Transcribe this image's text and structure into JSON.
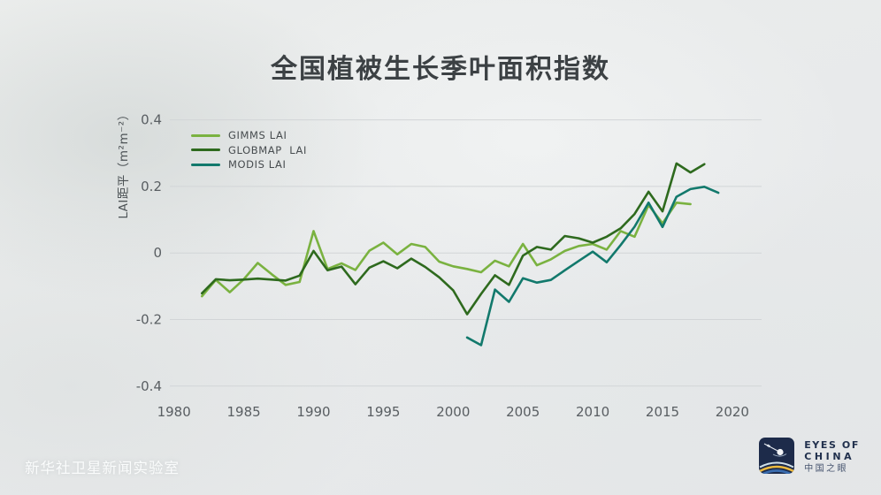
{
  "title": "全国植被生长季叶面积指数",
  "footer": {
    "watermark": "新华社卫星新闻实验室"
  },
  "logo": {
    "line1": "EYES OF",
    "line2": "CHINA",
    "line3": "中国之眼"
  },
  "colors": {
    "background": "#e9ebec",
    "grid": "#d2d5d7",
    "title_text": "#3c4144",
    "axis_text": "#595e62",
    "watermark_text": "#fcfdfd",
    "logo_navy": "#1d2b4a",
    "logo_arc_light": "#cfe0ea",
    "logo_arc_yellow": "#eeba3d",
    "logo_arc_blue": "#3a6db0"
  },
  "chart_data": {
    "type": "line",
    "title": "全国植被生长季叶面积指数",
    "xlabel": "",
    "ylabel": "LAI距平（m²m⁻²）",
    "ylim": [
      -0.4,
      0.4
    ],
    "xlim": [
      1980,
      2022
    ],
    "grid": "horizontal-only",
    "legend_position": "top-left-inside",
    "yticks": [
      {
        "v": 0.4,
        "label": "0.4"
      },
      {
        "v": 0.2,
        "label": "0.2"
      },
      {
        "v": 0,
        "label": "0"
      },
      {
        "v": -0.2,
        "label": "-0.2"
      },
      {
        "v": -0.4,
        "label": "-0.4"
      }
    ],
    "xticks": [
      "1980",
      "1985",
      "1990",
      "1995",
      "2000",
      "2005",
      "2010",
      "2015",
      "2020"
    ],
    "series": [
      {
        "name": "GIMMS LAI",
        "slug": "gimms",
        "color": "#7ab240",
        "x_start": 1982,
        "x_step": 1,
        "values": [
          -0.13,
          -0.081,
          -0.118,
          -0.079,
          -0.03,
          -0.064,
          -0.096,
          -0.087,
          0.066,
          -0.048,
          -0.031,
          -0.051,
          0.007,
          0.031,
          -0.004,
          0.027,
          0.018,
          -0.026,
          -0.04,
          -0.048,
          -0.058,
          -0.023,
          -0.04,
          0.027,
          -0.037,
          -0.019,
          0.006,
          0.021,
          0.027,
          0.01,
          0.066,
          0.049,
          0.144,
          0.089,
          0.151,
          0.147
        ]
      },
      {
        "name": "GLOBMAP  LAI",
        "slug": "globmap",
        "color": "#2e6a1e",
        "x_start": 1982,
        "x_step": 1,
        "values": [
          -0.121,
          -0.079,
          -0.082,
          -0.08,
          -0.077,
          -0.08,
          -0.083,
          -0.068,
          0.006,
          -0.052,
          -0.041,
          -0.094,
          -0.044,
          -0.025,
          -0.046,
          -0.017,
          -0.042,
          -0.073,
          -0.112,
          -0.184,
          -0.123,
          -0.067,
          -0.096,
          -0.008,
          0.018,
          0.01,
          0.051,
          0.044,
          0.031,
          0.049,
          0.074,
          0.117,
          0.184,
          0.125,
          0.269,
          0.242,
          0.267
        ]
      },
      {
        "name": "MODIS LAI",
        "slug": "modis",
        "color": "#12796c",
        "x_start": 2001,
        "x_step": 1,
        "values": [
          -0.254,
          -0.277,
          -0.11,
          -0.147,
          -0.076,
          -0.089,
          -0.081,
          -0.052,
          -0.024,
          0.004,
          -0.028,
          0.024,
          0.079,
          0.151,
          0.078,
          0.169,
          0.192,
          0.199,
          0.181
        ]
      }
    ]
  }
}
